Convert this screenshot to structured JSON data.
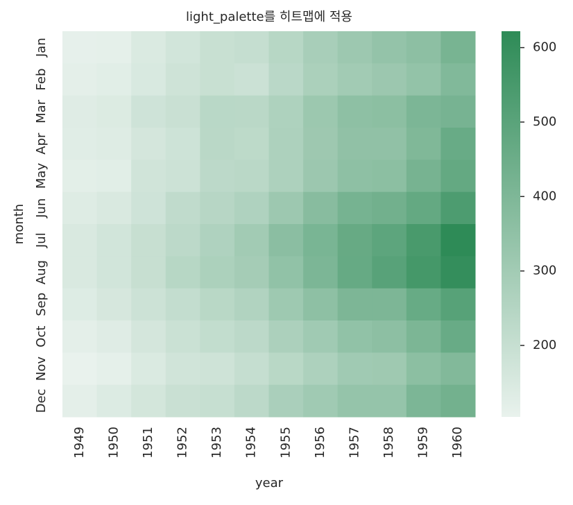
{
  "chart_data": {
    "type": "heatmap",
    "title": "light_palette를 히트맵에 적용",
    "xlabel": "year",
    "ylabel": "month",
    "x": [
      "1949",
      "1950",
      "1951",
      "1952",
      "1953",
      "1954",
      "1955",
      "1956",
      "1957",
      "1958",
      "1959",
      "1960"
    ],
    "y": [
      "Jan",
      "Feb",
      "Mar",
      "Apr",
      "May",
      "Jun",
      "Jul",
      "Aug",
      "Sep",
      "Oct",
      "Nov",
      "Dec"
    ],
    "values": [
      [
        112,
        115,
        145,
        171,
        196,
        204,
        242,
        284,
        315,
        340,
        360,
        417
      ],
      [
        118,
        126,
        150,
        180,
        196,
        188,
        233,
        277,
        301,
        318,
        342,
        391
      ],
      [
        132,
        141,
        178,
        193,
        236,
        235,
        267,
        317,
        356,
        362,
        406,
        419
      ],
      [
        129,
        135,
        163,
        181,
        235,
        227,
        269,
        313,
        348,
        348,
        396,
        461
      ],
      [
        121,
        125,
        172,
        183,
        229,
        234,
        270,
        318,
        355,
        363,
        420,
        472
      ],
      [
        135,
        149,
        178,
        218,
        243,
        264,
        315,
        374,
        422,
        435,
        472,
        535
      ],
      [
        148,
        170,
        199,
        230,
        264,
        302,
        364,
        413,
        465,
        491,
        548,
        622
      ],
      [
        148,
        170,
        199,
        242,
        272,
        293,
        347,
        405,
        467,
        505,
        559,
        606
      ],
      [
        136,
        158,
        184,
        209,
        237,
        259,
        312,
        355,
        404,
        404,
        463,
        508
      ],
      [
        119,
        133,
        162,
        191,
        211,
        229,
        274,
        306,
        347,
        359,
        407,
        461
      ],
      [
        104,
        114,
        146,
        172,
        180,
        203,
        237,
        271,
        305,
        310,
        362,
        390
      ],
      [
        118,
        140,
        166,
        194,
        201,
        229,
        278,
        306,
        336,
        337,
        405,
        432
      ]
    ],
    "colors": [
      "#e9f2ed",
      "#2e8b57"
    ],
    "clim": [
      104,
      622
    ],
    "cticks": [
      200,
      300,
      400,
      500,
      600
    ]
  }
}
